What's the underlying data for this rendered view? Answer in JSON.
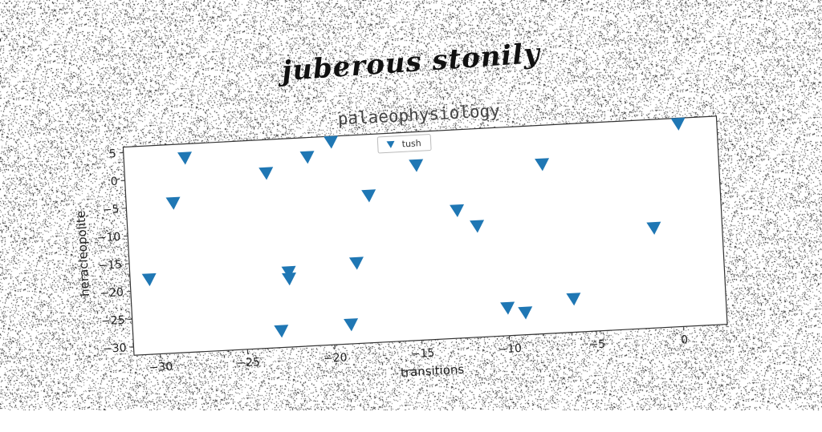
{
  "header": {
    "text": "juberous stonily"
  },
  "chart_data": {
    "type": "scatter",
    "title": "palaeophysiology",
    "xlabel": "transitions",
    "ylabel": "heracleopolite",
    "xlim": [
      -31.5,
      2.5
    ],
    "ylim": [
      -31.5,
      6
    ],
    "xticks": [
      -30,
      -25,
      -20,
      -15,
      -10,
      -5,
      0
    ],
    "yticks": [
      5,
      0,
      -5,
      -10,
      -15,
      -20,
      -25,
      -30
    ],
    "legend": {
      "position": "top-center"
    },
    "marker": "triangle-down",
    "color": "#1f77b4",
    "series": [
      {
        "name": "tush",
        "points": [
          {
            "x": -30.4,
            "y": -18.0
          },
          {
            "x": -28.8,
            "y": -4.5
          },
          {
            "x": -28.0,
            "y": 3.5
          },
          {
            "x": -23.4,
            "y": 0.0
          },
          {
            "x": -23.0,
            "y": -28.5
          },
          {
            "x": -22.4,
            "y": -18.0
          },
          {
            "x": -22.4,
            "y": -19.2
          },
          {
            "x": -21.0,
            "y": 2.5
          },
          {
            "x": -19.6,
            "y": 5.0
          },
          {
            "x": -19.0,
            "y": -28.0
          },
          {
            "x": -18.5,
            "y": -17.0
          },
          {
            "x": -17.6,
            "y": -5.0
          },
          {
            "x": -14.8,
            "y": 0.0
          },
          {
            "x": -12.6,
            "y": -8.5
          },
          {
            "x": -11.5,
            "y": -11.5
          },
          {
            "x": -10.0,
            "y": -26.5
          },
          {
            "x": -9.0,
            "y": -27.5
          },
          {
            "x": -7.6,
            "y": -1.0
          },
          {
            "x": -6.2,
            "y": -25.5
          },
          {
            "x": -1.4,
            "y": -13.5
          },
          {
            "x": 0.3,
            "y": 5.0
          }
        ]
      }
    ]
  }
}
